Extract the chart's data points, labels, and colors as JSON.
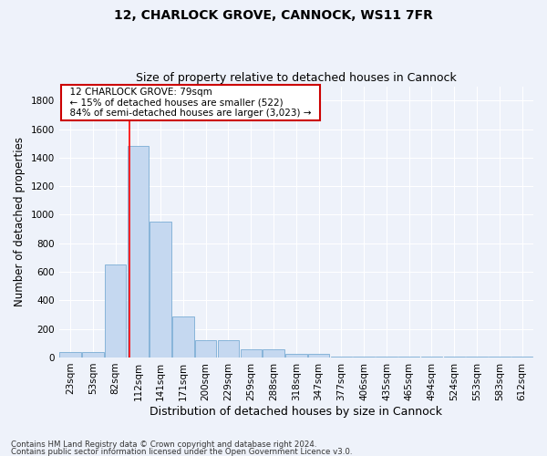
{
  "title1": "12, CHARLOCK GROVE, CANNOCK, WS11 7FR",
  "title2": "Size of property relative to detached houses in Cannock",
  "xlabel": "Distribution of detached houses by size in Cannock",
  "ylabel": "Number of detached properties",
  "footer1": "Contains HM Land Registry data © Crown copyright and database right 2024.",
  "footer2": "Contains public sector information licensed under the Open Government Licence v3.0.",
  "annotation_line1": "12 CHARLOCK GROVE: 79sqm",
  "annotation_line2": "← 15% of detached houses are smaller (522)",
  "annotation_line3": "84% of semi-detached houses are larger (3,023) →",
  "bin_labels": [
    "23sqm",
    "53sqm",
    "82sqm",
    "112sqm",
    "141sqm",
    "171sqm",
    "200sqm",
    "229sqm",
    "259sqm",
    "288sqm",
    "318sqm",
    "347sqm",
    "377sqm",
    "406sqm",
    "435sqm",
    "465sqm",
    "494sqm",
    "524sqm",
    "553sqm",
    "583sqm",
    "612sqm"
  ],
  "bar_values": [
    35,
    35,
    650,
    1480,
    950,
    290,
    120,
    120,
    60,
    60,
    25,
    25,
    8,
    8,
    5,
    5,
    3,
    3,
    3,
    3,
    3
  ],
  "bar_color": "#c5d8f0",
  "bar_edge_color": "#7aadd4",
  "red_line_x": 2.62,
  "ylim": [
    0,
    1900
  ],
  "yticks": [
    0,
    200,
    400,
    600,
    800,
    1000,
    1200,
    1400,
    1600,
    1800
  ],
  "bg_color": "#eef2fa",
  "grid_color": "#ffffff",
  "annotation_box_color": "#ffffff",
  "annotation_box_edge": "#cc0000",
  "title_fontsize": 10,
  "subtitle_fontsize": 9,
  "tick_fontsize": 7.5,
  "ylabel_fontsize": 8.5,
  "xlabel_fontsize": 9
}
